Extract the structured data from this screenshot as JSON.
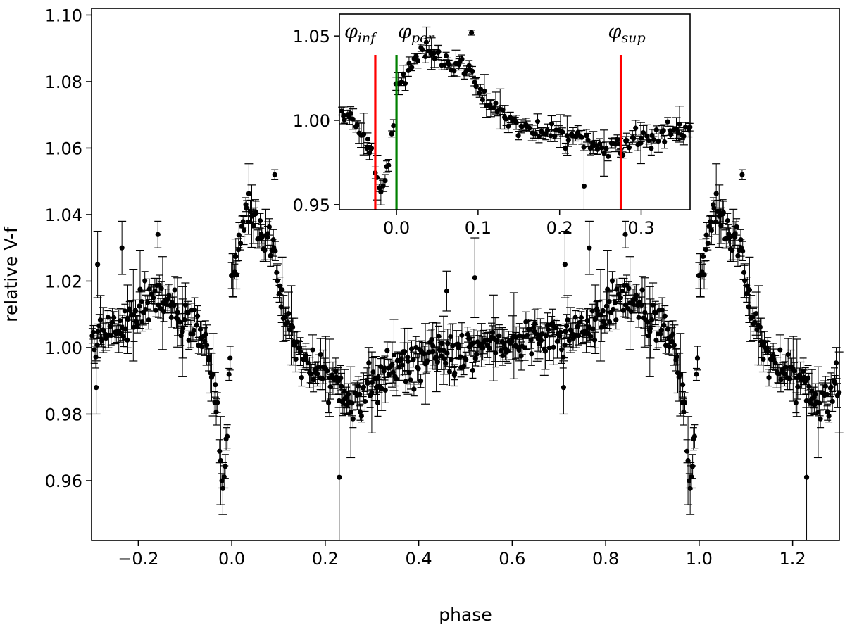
{
  "chart_data": [
    {
      "type": "scatter",
      "title": "",
      "xlabel": "phase",
      "ylabel": "relative V-f",
      "xlim": [
        -0.3,
        1.3
      ],
      "ylim": [
        0.942,
        1.102
      ],
      "xticks": [
        -0.2,
        0.0,
        0.2,
        0.4,
        0.6,
        0.8,
        1.0,
        1.2
      ],
      "xtick_labels": [
        "−0.2",
        "0.0",
        "0.2",
        "0.4",
        "0.6",
        "0.8",
        "1.0",
        "1.2"
      ],
      "yticks": [
        0.96,
        0.98,
        1.0,
        1.02,
        1.04,
        1.06,
        1.08,
        1.1
      ],
      "ytick_labels": [
        "0.96",
        "0.98",
        "1.00",
        "1.02",
        "1.04",
        "1.06",
        "1.08",
        "1.10"
      ],
      "grid": false,
      "marker_color": "#000000",
      "phase_curve": {
        "x": [
          0.0,
          0.01,
          0.02,
          0.03,
          0.04,
          0.05,
          0.06,
          0.07,
          0.08,
          0.09,
          0.1,
          0.11,
          0.12,
          0.13,
          0.14,
          0.15,
          0.17,
          0.19,
          0.21,
          0.23,
          0.25,
          0.28,
          0.31,
          0.34,
          0.37,
          0.4,
          0.45,
          0.5,
          0.55,
          0.6,
          0.65,
          0.7,
          0.75,
          0.78,
          0.8,
          0.82,
          0.84,
          0.86,
          0.88,
          0.9,
          0.92,
          0.94,
          0.95,
          0.955,
          0.96,
          0.965,
          0.97,
          0.975,
          0.98,
          0.985,
          0.99,
          0.995,
          1.0
        ],
        "y": [
          1.021,
          1.027,
          1.033,
          1.038,
          1.04,
          1.041,
          1.037,
          1.031,
          1.03,
          1.028,
          1.022,
          1.013,
          1.007,
          1.003,
          0.999,
          0.996,
          0.995,
          0.993,
          0.99,
          0.986,
          0.984,
          0.986,
          0.99,
          0.993,
          0.995,
          0.996,
          0.998,
          0.999,
          1.001,
          1.002,
          1.003,
          1.004,
          1.005,
          1.008,
          1.011,
          1.013,
          1.015,
          1.014,
          1.011,
          1.009,
          1.007,
          1.004,
          1.0,
          0.995,
          0.99,
          0.985,
          0.978,
          0.97,
          0.96,
          0.962,
          0.975,
          0.99,
          1.021
        ]
      }
    },
    {
      "type": "scatter",
      "title": "",
      "xlim": [
        -0.07,
        0.36
      ],
      "ylim": [
        0.947,
        1.063
      ],
      "xticks": [
        0.0,
        0.1,
        0.2,
        0.3
      ],
      "xtick_labels": [
        "0.0",
        "0.1",
        "0.2",
        "0.3"
      ],
      "yticks": [
        0.95,
        1.0,
        1.05
      ],
      "ytick_labels": [
        "0.95",
        "1.00",
        "1.05"
      ],
      "vlines": [
        {
          "x": -0.026,
          "color": "#ff0000",
          "label": "φ",
          "label_sub": "inf"
        },
        {
          "x": 0.0,
          "color": "#008000",
          "label": "φ",
          "label_sub": "per"
        },
        {
          "x": 0.275,
          "color": "#ff0000",
          "label": "φ",
          "label_sub": "sup"
        }
      ]
    }
  ]
}
